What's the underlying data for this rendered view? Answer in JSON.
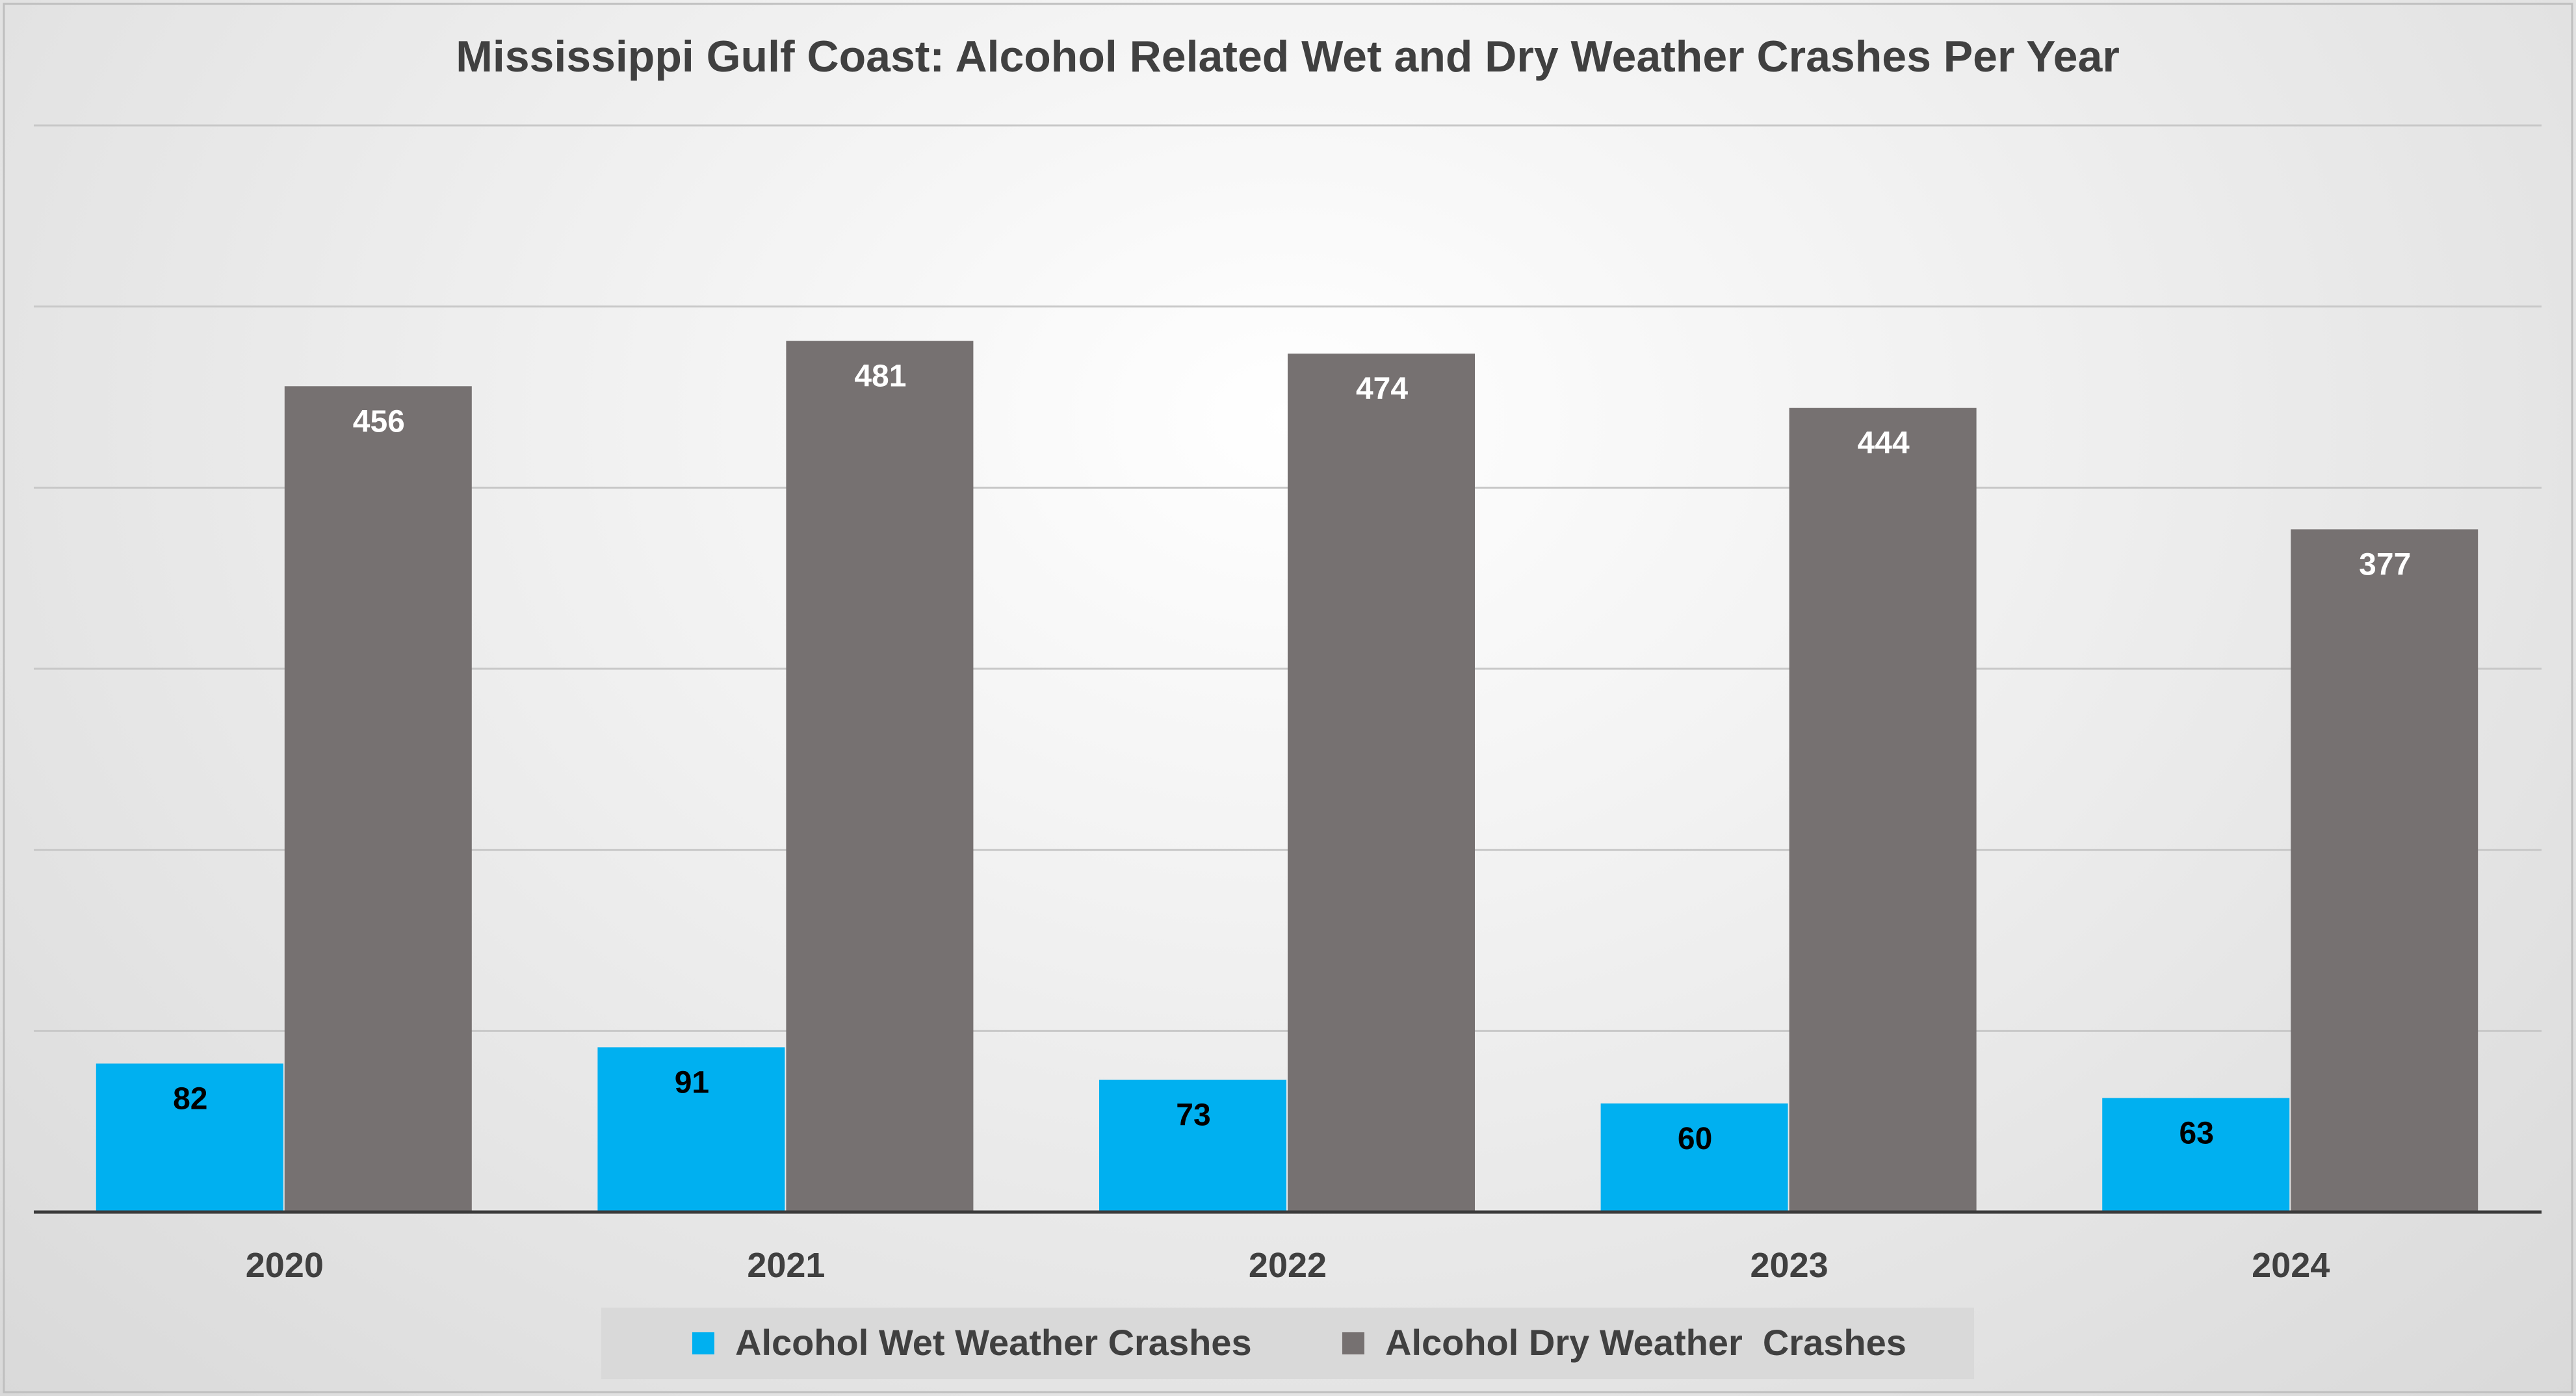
{
  "chart_data": {
    "type": "bar",
    "title": "Mississippi Gulf Coast: Alcohol Related Wet and Dry Weather Crashes Per Year",
    "categories": [
      "2020",
      "2021",
      "2022",
      "2023",
      "2024"
    ],
    "series": [
      {
        "name": "Alcohol Wet Weather Crashes",
        "values": [
          82,
          91,
          73,
          60,
          63
        ],
        "color": "#00b0f0",
        "label_color": "#000000"
      },
      {
        "name": "Alcohol Dry Weather  Crashes",
        "values": [
          456,
          481,
          474,
          444,
          377
        ],
        "color": "#767171",
        "label_color": "#ffffff"
      }
    ],
    "ylim": [
      0,
      600
    ],
    "y_gridlines": [
      100,
      200,
      300,
      400,
      500,
      600
    ],
    "y_tick_labels_visible": false,
    "xlabel": "",
    "ylabel": "",
    "legend": "bottom",
    "data_labels": true
  }
}
